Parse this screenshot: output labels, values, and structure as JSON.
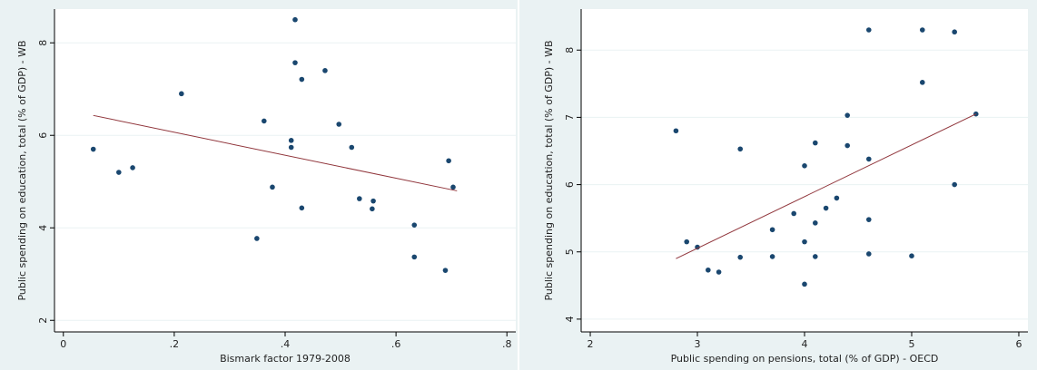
{
  "chart_data": [
    {
      "type": "scatter",
      "xlabel": "Bismark factor 1979-2008",
      "ylabel": "Public spending on education, total (% of GDP) - WB",
      "x": [
        0.054,
        0.1,
        0.125,
        0.213,
        0.418,
        0.418,
        0.43,
        0.472,
        0.362,
        0.497,
        0.411,
        0.411,
        0.52,
        0.377,
        0.534,
        0.559,
        0.557,
        0.43,
        0.349,
        0.633,
        0.633,
        0.695,
        0.703,
        0.689
      ],
      "values": [
        5.7,
        5.2,
        5.3,
        6.9,
        8.5,
        7.57,
        7.21,
        7.4,
        6.31,
        6.24,
        5.89,
        5.74,
        5.74,
        4.88,
        4.63,
        4.58,
        4.41,
        4.43,
        3.77,
        4.06,
        3.37,
        5.45,
        4.88,
        3.08
      ],
      "color": "#1a476f",
      "fit": {
        "x": [
          0.054,
          0.71
        ],
        "values": [
          6.43,
          4.8
        ],
        "color": "#90353b"
      },
      "xlim": [
        -0.016,
        0.816
      ],
      "ylim": [
        1.75,
        8.73
      ],
      "xticks": [
        0,
        {
          "value": 0.2,
          "label": ".2"
        },
        {
          "value": 0.4,
          "label": ".4"
        },
        {
          "value": 0.6,
          "label": ".6"
        },
        {
          "value": 0.8,
          "label": ".8"
        }
      ],
      "yticks": [
        2,
        4,
        6,
        8
      ],
      "grid": true
    },
    {
      "type": "scatter",
      "xlabel": "Public spending on pensions, total (% of GDP) - OECD",
      "ylabel": "Public spending on education, total (% of GDP) - WB",
      "x": [
        2.8,
        2.9,
        3.0,
        3.1,
        3.2,
        3.4,
        3.4,
        3.7,
        3.7,
        3.9,
        4.0,
        4.0,
        4.0,
        4.1,
        4.1,
        4.1,
        4.2,
        4.3,
        4.4,
        4.4,
        4.6,
        4.6,
        4.6,
        4.6,
        5.0,
        5.1,
        5.1,
        5.4,
        5.4,
        5.6
      ],
      "values": [
        6.8,
        5.15,
        5.07,
        4.73,
        4.7,
        6.53,
        4.92,
        5.33,
        4.93,
        5.57,
        6.28,
        5.15,
        4.52,
        6.62,
        5.43,
        4.93,
        5.65,
        5.8,
        7.03,
        6.58,
        8.3,
        6.38,
        5.48,
        4.97,
        4.94,
        8.3,
        7.52,
        8.27,
        6.0,
        7.05
      ],
      "color": "#1a476f",
      "fit": {
        "x": [
          2.8,
          5.6
        ],
        "values": [
          4.9,
          7.05
        ],
        "color": "#90353b"
      },
      "xlim": [
        1.915,
        6.085
      ],
      "ylim": [
        3.81,
        8.61
      ],
      "xticks": [
        2,
        3,
        4,
        5,
        6
      ],
      "yticks": [
        4,
        5,
        6,
        7,
        8
      ],
      "grid": true
    }
  ]
}
